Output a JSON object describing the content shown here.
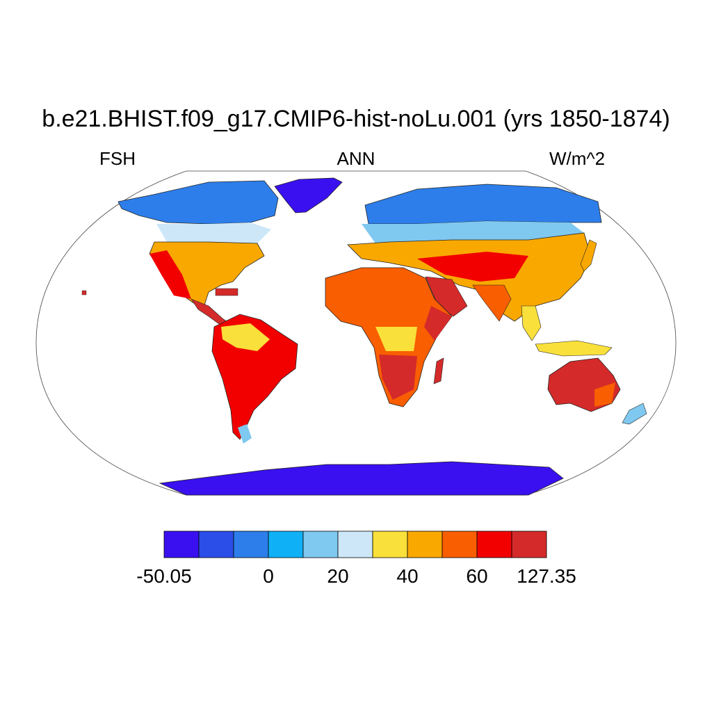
{
  "title": "b.e21.BHIST.f09_g17.CMIP6-hist-noLu.001 (yrs 1850-1874)",
  "left_string": "FSH",
  "center_string": "ANN",
  "right_string": "W/m^2",
  "projection": "Robinson",
  "colorbar": {
    "colors": [
      "#3a10f0",
      "#2b4ee8",
      "#2d7eea",
      "#0fb0f6",
      "#7fc8f0",
      "#cde7f8",
      "#f9e03a",
      "#f9a800",
      "#f95e00",
      "#f20000",
      "#d42a2a"
    ],
    "labels": [
      "-50.05",
      "0",
      "20",
      "40",
      "60",
      "127.35"
    ]
  }
}
